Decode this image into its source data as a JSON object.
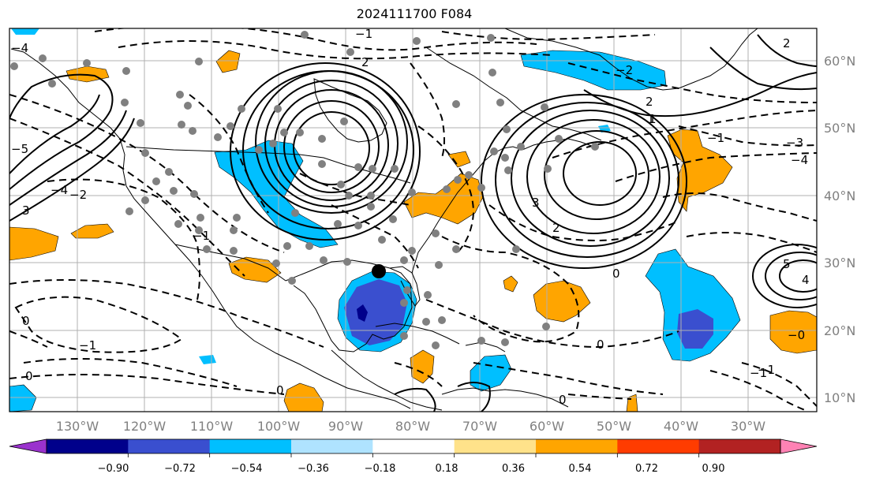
{
  "title": "2024111700 F084",
  "map": {
    "lon_labels": [
      "130°W",
      "120°W",
      "110°W",
      "100°W",
      "90°W",
      "80°W",
      "70°W",
      "60°W",
      "50°W",
      "40°W",
      "30°W"
    ],
    "lat_labels": [
      "60°N",
      "50°N",
      "40°N",
      "30°N",
      "20°N",
      "10°N"
    ],
    "grid": true,
    "marker": "black-dot",
    "station_marker": "gray-dot"
  },
  "colorbar": {
    "ticks": [
      "−0.90",
      "−0.72",
      "−0.54",
      "−0.36",
      "−0.18",
      "0.18",
      "0.36",
      "0.54",
      "0.72",
      "0.90"
    ],
    "colors": [
      "#9a32cd",
      "#00008b",
      "#3a4fcf",
      "#00bfff",
      "#afe3ff",
      "#ffffff",
      "#ffe28a",
      "#ffa500",
      "#ff3c00",
      "#b22222",
      "#ff82b4"
    ]
  },
  "contour_labels": {
    "l1": "−1",
    "l2": "−2",
    "l3": "3",
    "l4": "−4",
    "l5": "−1",
    "l6": "2",
    "l7": "−3",
    "l8": "−4",
    "l9": "−1",
    "l10": "0",
    "l11": "0",
    "l12": "−1",
    "l13": "1",
    "l14": "2",
    "l15": "−2",
    "l16": "−5",
    "l17": "3",
    "l18": "0",
    "l19": "2",
    "l20": "1",
    "l21": "2",
    "l22": "−0",
    "l23": "0",
    "l24": "0",
    "l25": "−1",
    "l26": "0",
    "l27": "5",
    "l28": "4",
    "l29": "−1",
    "l30": "−4"
  }
}
